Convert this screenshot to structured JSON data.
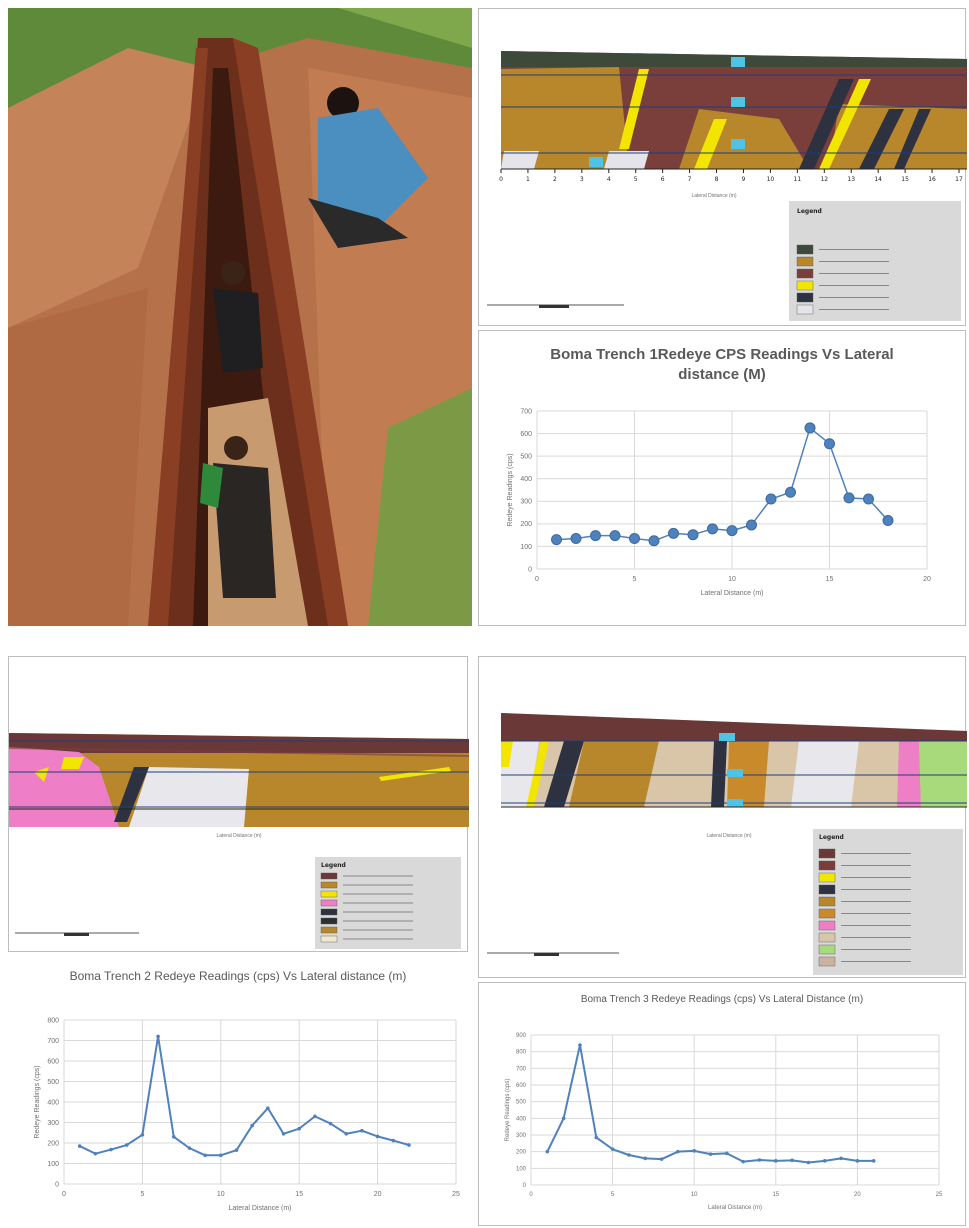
{
  "sections": {
    "trench1": {
      "legend_title": "Legend",
      "xlabel": "Lateral Distance (m)",
      "ticks": [
        "0",
        "1",
        "2",
        "3",
        "4",
        "5",
        "6",
        "7",
        "8",
        "9",
        "10",
        "11",
        "12",
        "13",
        "14",
        "15",
        "16",
        "17"
      ],
      "legend_colors": [
        "#3d4a3a",
        "#b8862b",
        "#7a3f3b",
        "#f2e600",
        "#2e3140",
        "#e4e4ea"
      ]
    },
    "trench2": {
      "legend_title": "Legend",
      "xlabel": "Lateral Distance (m)",
      "legend_colors": [
        "#6b3838",
        "#b8862b",
        "#f2e600",
        "#ee7fc6",
        "#2e3140",
        "#2e2e2e",
        "#b8862b",
        "#efe7cf"
      ]
    },
    "trench3": {
      "legend_title": "Legend",
      "xlabel": "Lateral Distance (m)",
      "legend_colors": [
        "#6b3838",
        "#7a3f3b",
        "#f2e600",
        "#2e3140",
        "#b8862b",
        "#c98a2c",
        "#ee7fc6",
        "#d9c6a8",
        "#a8d97a",
        "#c9b3a0"
      ]
    }
  },
  "chart_data": [
    {
      "type": "line",
      "title": "Boma Trench 1Redeye CPS Readings Vs Lateral distance (M)",
      "xlabel": "Lateral Distance (m)",
      "ylabel": "Redeye Readings (cps)",
      "xlim": [
        0,
        20
      ],
      "ylim": [
        0,
        700
      ],
      "xticks": [
        "0",
        "5",
        "10",
        "15",
        "20"
      ],
      "yticks": [
        "0",
        "100",
        "200",
        "300",
        "400",
        "500",
        "600",
        "700"
      ],
      "grid": true,
      "marker": "circle",
      "color": "#4f81bd",
      "x": [
        1,
        2,
        3,
        4,
        5,
        6,
        7,
        8,
        9,
        10,
        11,
        12,
        13,
        14,
        15,
        16,
        17,
        18
      ],
      "y": [
        130,
        135,
        148,
        148,
        135,
        125,
        158,
        152,
        178,
        170,
        195,
        310,
        340,
        625,
        555,
        315,
        310,
        215
      ]
    },
    {
      "type": "line",
      "title": "Boma Trench 2 Redeye Readings (cps) Vs Lateral distance (m)",
      "xlabel": "Lateral Distance (m)",
      "ylabel": "Redeye Readings (cps)",
      "xlim": [
        0,
        25
      ],
      "ylim": [
        0,
        800
      ],
      "xticks": [
        "0",
        "5",
        "10",
        "15",
        "20",
        "25"
      ],
      "yticks": [
        "0",
        "100",
        "200",
        "300",
        "400",
        "500",
        "600",
        "700",
        "800"
      ],
      "grid": true,
      "marker": "dot",
      "color": "#4f81bd",
      "x": [
        1,
        2,
        3,
        4,
        5,
        6,
        7,
        8,
        9,
        10,
        11,
        12,
        13,
        14,
        15,
        16,
        17,
        18,
        19,
        20,
        21,
        22
      ],
      "y": [
        185,
        148,
        168,
        190,
        240,
        720,
        230,
        175,
        140,
        140,
        165,
        285,
        370,
        245,
        270,
        330,
        295,
        245,
        260,
        232,
        212,
        190
      ]
    },
    {
      "type": "line",
      "title": "Boma Trench 3 Redeye Readings (cps) Vs Lateral Distance (m)",
      "xlabel": "Lateral Distance (m)",
      "ylabel": "Redeye Readings (cps)",
      "xlim": [
        0,
        25
      ],
      "ylim": [
        0,
        900
      ],
      "xticks": [
        "0",
        "5",
        "10",
        "15",
        "20",
        "25"
      ],
      "yticks": [
        "0",
        "100",
        "200",
        "300",
        "400",
        "500",
        "600",
        "700",
        "800",
        "900"
      ],
      "grid": true,
      "marker": "dot",
      "color": "#4f81bd",
      "x": [
        1,
        2,
        3,
        4,
        5,
        6,
        7,
        8,
        9,
        10,
        11,
        12,
        13,
        14,
        15,
        16,
        17,
        18,
        19,
        20,
        21
      ],
      "y": [
        200,
        400,
        840,
        285,
        215,
        180,
        160,
        155,
        200,
        205,
        185,
        190,
        140,
        150,
        145,
        148,
        135,
        145,
        160,
        145,
        145
      ]
    }
  ]
}
